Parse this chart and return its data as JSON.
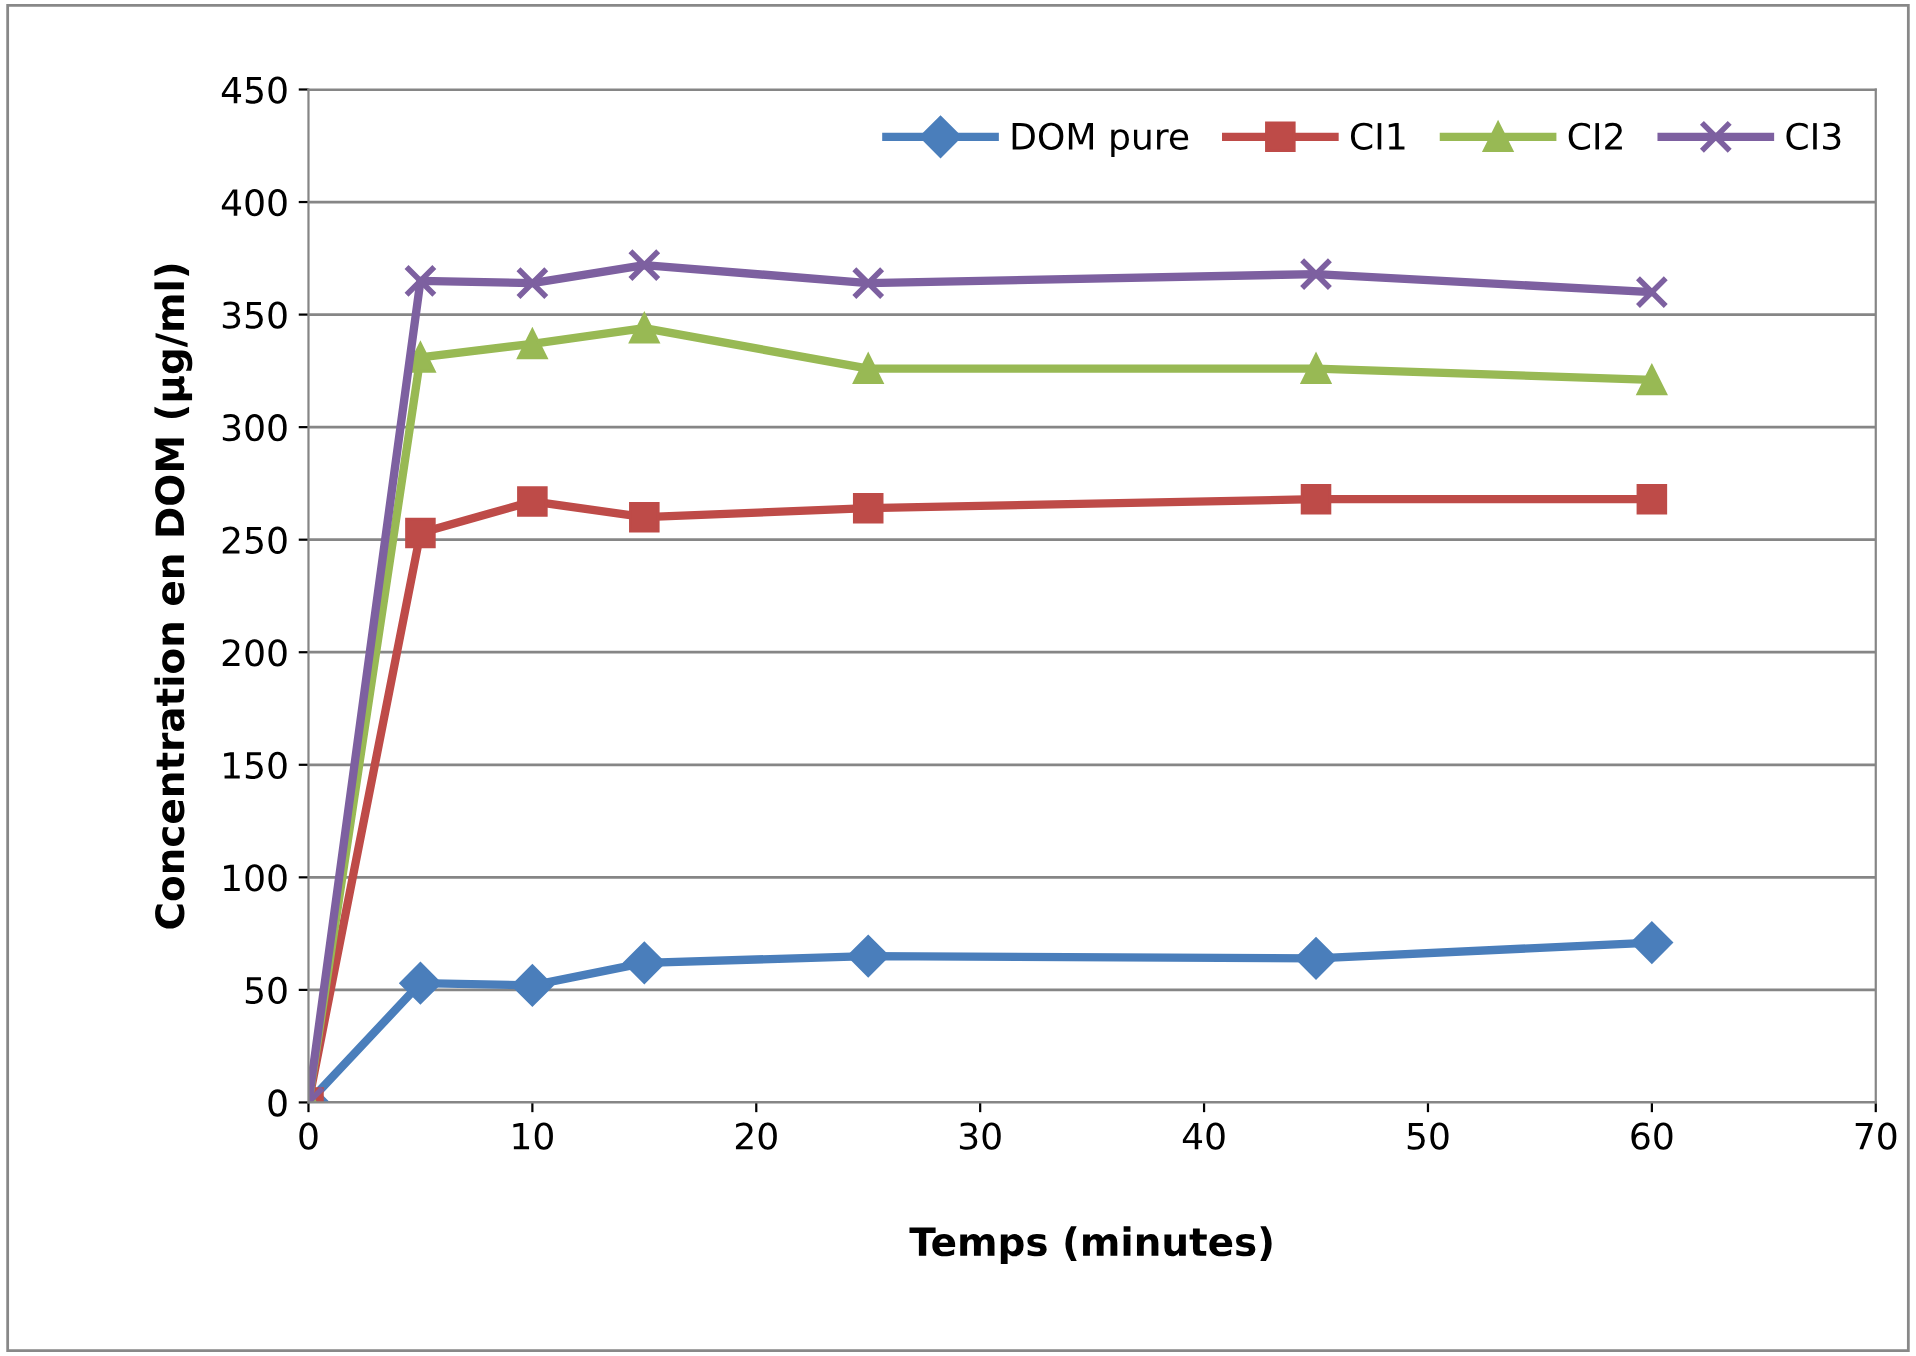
{
  "chart_data": {
    "type": "line",
    "xlabel": "Temps (minutes)",
    "ylabel": "Concentration en DOM (µg/ml)",
    "x": [
      0,
      5,
      10,
      15,
      25,
      45,
      60
    ],
    "xlim": [
      0,
      70
    ],
    "xticks": [
      0,
      10,
      20,
      30,
      40,
      50,
      60,
      70
    ],
    "ylim": [
      0,
      450
    ],
    "yticks": [
      0,
      50,
      100,
      150,
      200,
      250,
      300,
      350,
      400,
      450
    ],
    "grid": "y",
    "legend": "top right",
    "line_style": "solid",
    "series": [
      {
        "name": "DOM pure",
        "color": "#4a7ebb",
        "marker": "diamond",
        "values": [
          0,
          53,
          52,
          62,
          65,
          64,
          71
        ]
      },
      {
        "name": "CI1",
        "color": "#be4b48",
        "marker": "square",
        "values": [
          0,
          253,
          267,
          260,
          264,
          268,
          268
        ]
      },
      {
        "name": "CI2",
        "color": "#98b954",
        "marker": "triangle",
        "values": [
          0,
          331,
          337,
          344,
          326,
          326,
          321
        ]
      },
      {
        "name": "CI3",
        "color": "#7d60a0",
        "marker": "cross",
        "values": [
          0,
          365,
          364,
          372,
          364,
          368,
          360
        ]
      }
    ]
  }
}
